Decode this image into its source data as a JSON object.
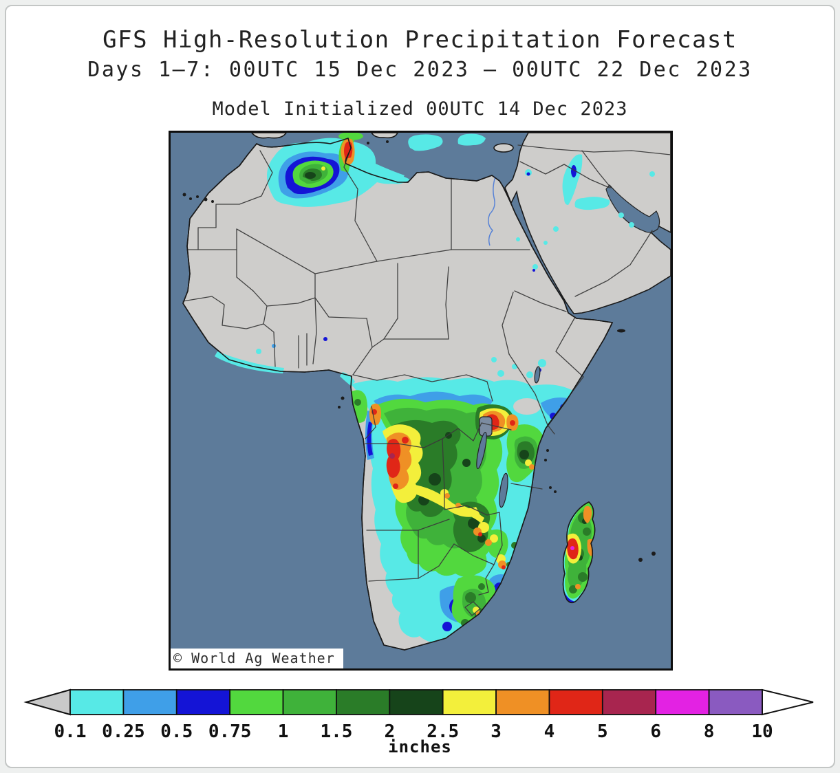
{
  "header": {
    "title": "GFS High-Resolution Precipitation Forecast",
    "subtitle": "Days 1–7: 00UTC 15 Dec 2023 – 00UTC 22 Dec 2023",
    "init_line": "Model Initialized 00UTC 14 Dec 2023"
  },
  "map": {
    "watermark": "© World Ag Weather",
    "region": "Africa and Middle East",
    "ocean_color": "#5d7b9a",
    "land_color": "#cecdcb",
    "lake_color": "#7b8ba1"
  },
  "palette": {
    "cyan": "#57e9e6",
    "skyblue": "#3f9fe8",
    "blue": "#1414d6",
    "green1": "#52d83e",
    "green2": "#3fb23a",
    "green3": "#2a7c28",
    "green4": "#16441a",
    "yellow": "#f3ef3b",
    "orange": "#ef9025",
    "red": "#e02617",
    "crimson": "#a8254f",
    "magenta": "#e322e3",
    "purple": "#8a5ac0"
  },
  "colorbar": {
    "unit_label": "inches",
    "labels": [
      "0.1",
      "0.25",
      "0.5",
      "0.75",
      "1",
      "1.5",
      "2",
      "2.5",
      "3",
      "4",
      "5",
      "6",
      "8",
      "10"
    ],
    "segment_keys": [
      "cyan",
      "skyblue",
      "blue",
      "green1",
      "green2",
      "green3",
      "green4",
      "yellow",
      "orange",
      "red",
      "crimson",
      "magenta",
      "purple"
    ],
    "below_min_color": "#c9c9c9",
    "above_max_color": "#ffffff",
    "outline_color": "#111111"
  }
}
